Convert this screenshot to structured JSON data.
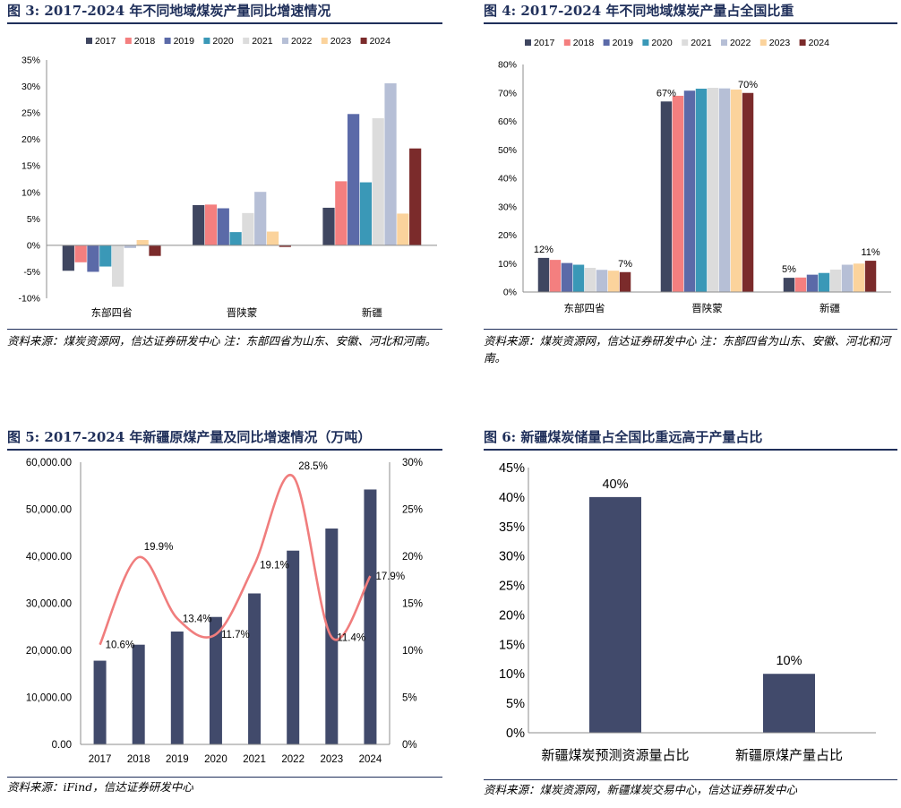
{
  "colors": {
    "title": "#1f2f5a",
    "series": [
      "#3f4660",
      "#f47f7f",
      "#5b6aa8",
      "#3a98b7",
      "#dcdcdc",
      "#b6bfd6",
      "#fbd39c",
      "#7b2b2b"
    ],
    "bar_navy": "#414a6b",
    "line_pink": "#f07d7d"
  },
  "figures": [
    {
      "title": "图 3:  2017-2024 年不同地域煤炭产量同比增速情况",
      "source": "资料来源：煤炭资源网，信达证券研发中心 注：东部四省为山东、安徽、河北和河南。"
    },
    {
      "title": "图 4:  2017-2024 年不同地域煤炭产量占全国比重",
      "source": "资料来源：煤炭资源网，信达证券研发中心 注：东部四省为山东、安徽、河北和河南。"
    },
    {
      "title": "图 5:  2017-2024 年新疆原煤产量及同比增速情况（万吨）",
      "source": "资料来源：iFind，信达证券研发中心"
    },
    {
      "title": "图 6:  新疆煤炭储量占全国比重远高于产量占比",
      "source": "资料来源：煤炭资源网，新疆煤炭交易中心，信达证券研发中心"
    }
  ],
  "chart_data": [
    {
      "type": "bar",
      "categories": [
        "东部四省",
        "晋陕蒙",
        "新疆"
      ],
      "series": [
        {
          "name": "2017",
          "values": [
            -4.8,
            7.6,
            7.1
          ]
        },
        {
          "name": "2018",
          "values": [
            -3.2,
            7.7,
            12.1
          ]
        },
        {
          "name": "2019",
          "values": [
            -5.0,
            7.0,
            24.8
          ]
        },
        {
          "name": "2020",
          "values": [
            -4.0,
            2.5,
            11.9
          ]
        },
        {
          "name": "2021",
          "values": [
            -7.8,
            6.1,
            24.0
          ]
        },
        {
          "name": "2022",
          "values": [
            -0.5,
            10.1,
            30.6
          ]
        },
        {
          "name": "2023",
          "values": [
            1.0,
            2.6,
            6.0
          ]
        },
        {
          "name": "2024",
          "values": [
            -2.0,
            -0.3,
            18.3
          ]
        }
      ],
      "yticks": [
        "-10%",
        "-5%",
        "0%",
        "5%",
        "10%",
        "15%",
        "20%",
        "25%",
        "30%",
        "35%"
      ],
      "ylim": [
        -10,
        35
      ],
      "legend": "top"
    },
    {
      "type": "bar",
      "categories": [
        "东部四省",
        "晋陕蒙",
        "新疆"
      ],
      "series": [
        {
          "name": "2017",
          "values": [
            12,
            67,
            5
          ]
        },
        {
          "name": "2018",
          "values": [
            11.3,
            69,
            5.1
          ]
        },
        {
          "name": "2019",
          "values": [
            10.2,
            70.8,
            6.1
          ]
        },
        {
          "name": "2020",
          "values": [
            9.6,
            71.5,
            6.7
          ]
        },
        {
          "name": "2021",
          "values": [
            8.5,
            71.8,
            7.9
          ]
        },
        {
          "name": "2022",
          "values": [
            7.8,
            71.6,
            9.6
          ]
        },
        {
          "name": "2023",
          "values": [
            7.5,
            71.2,
            10.0
          ]
        },
        {
          "name": "2024",
          "values": [
            7,
            70,
            11
          ]
        }
      ],
      "data_labels": [
        {
          "series": 0,
          "category": 0,
          "text": "12%"
        },
        {
          "series": 7,
          "category": 0,
          "text": "7%"
        },
        {
          "series": 0,
          "category": 1,
          "text": "67%"
        },
        {
          "series": 7,
          "category": 1,
          "text": "70%"
        },
        {
          "series": 0,
          "category": 2,
          "text": "5%"
        },
        {
          "series": 7,
          "category": 2,
          "text": "11%"
        }
      ],
      "yticks": [
        "0%",
        "10%",
        "20%",
        "30%",
        "40%",
        "50%",
        "60%",
        "70%",
        "80%"
      ],
      "ylim": [
        0,
        80
      ],
      "legend": "top"
    },
    {
      "type": "bar",
      "categories": [
        "2017",
        "2018",
        "2019",
        "2020",
        "2021",
        "2022",
        "2023",
        "2024"
      ],
      "bar_values": [
        17800,
        21200,
        24000,
        27100,
        32100,
        41200,
        45900,
        54200
      ],
      "line_values": [
        10.6,
        19.9,
        13.4,
        11.7,
        19.1,
        28.5,
        11.4,
        17.9
      ],
      "line_labels": [
        "10.6%",
        "19.9%",
        "13.4%",
        "11.7%",
        "19.1%",
        "28.5%",
        "11.4%",
        "17.9%"
      ],
      "yticks_left": [
        "0.00",
        "10,000.00",
        "20,000.00",
        "30,000.00",
        "40,000.00",
        "50,000.00",
        "60,000.00"
      ],
      "yticks_right": [
        "0%",
        "5%",
        "10%",
        "15%",
        "20%",
        "25%",
        "30%"
      ],
      "ylim_left": [
        0,
        60000
      ],
      "ylim_right": [
        0,
        30
      ]
    },
    {
      "type": "bar",
      "categories": [
        "新疆煤炭预测资源量占比",
        "新疆原煤产量占比"
      ],
      "values": [
        40,
        10
      ],
      "labels": [
        "40%",
        "10%"
      ],
      "yticks": [
        "0%",
        "5%",
        "10%",
        "15%",
        "20%",
        "25%",
        "30%",
        "35%",
        "40%",
        "45%"
      ],
      "ylim": [
        0,
        45
      ]
    }
  ]
}
